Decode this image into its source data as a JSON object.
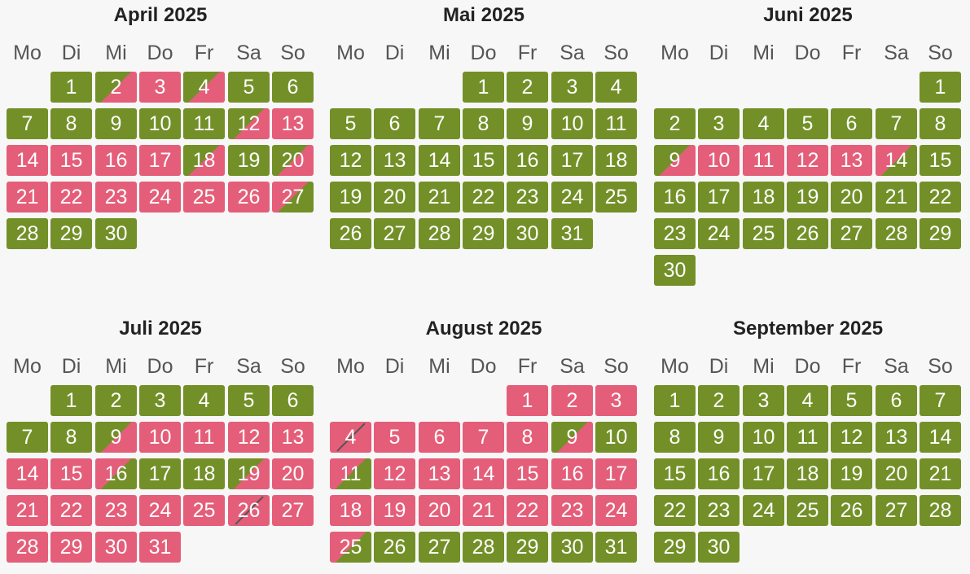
{
  "colors": {
    "free": "#739028",
    "booked": "#e45e79",
    "background": "#f7f7f7"
  },
  "weekdays": [
    "Mo",
    "Di",
    "Mi",
    "Do",
    "Fr",
    "Sa",
    "So"
  ],
  "months": [
    {
      "title": "April 2025",
      "days": [
        {
          "d": "1",
          "s": "free"
        },
        {
          "d": "2",
          "s": "pm-booked"
        },
        {
          "d": "3",
          "s": "booked"
        },
        {
          "d": "4",
          "s": "pm-booked"
        },
        {
          "d": "5",
          "s": "free"
        },
        {
          "d": "6",
          "s": "free"
        },
        {
          "d": "7",
          "s": "free"
        },
        {
          "d": "8",
          "s": "free"
        },
        {
          "d": "9",
          "s": "free"
        },
        {
          "d": "10",
          "s": "free"
        },
        {
          "d": "11",
          "s": "free"
        },
        {
          "d": "12",
          "s": "pm-booked"
        },
        {
          "d": "13",
          "s": "booked"
        },
        {
          "d": "14",
          "s": "booked"
        },
        {
          "d": "15",
          "s": "booked"
        },
        {
          "d": "16",
          "s": "booked"
        },
        {
          "d": "17",
          "s": "booked"
        },
        {
          "d": "18",
          "s": "pm-booked"
        },
        {
          "d": "19",
          "s": "free"
        },
        {
          "d": "20",
          "s": "pm-booked"
        },
        {
          "d": "21",
          "s": "booked"
        },
        {
          "d": "22",
          "s": "booked"
        },
        {
          "d": "23",
          "s": "booked"
        },
        {
          "d": "24",
          "s": "booked"
        },
        {
          "d": "25",
          "s": "booked"
        },
        {
          "d": "26",
          "s": "booked"
        },
        {
          "d": "27",
          "s": "am-booked"
        },
        {
          "d": "28",
          "s": "free"
        },
        {
          "d": "29",
          "s": "free"
        },
        {
          "d": "30",
          "s": "free"
        }
      ]
    },
    {
      "title": "Mai 2025",
      "days": [
        {
          "d": "1",
          "s": "free"
        },
        {
          "d": "2",
          "s": "free"
        },
        {
          "d": "3",
          "s": "free"
        },
        {
          "d": "4",
          "s": "free"
        },
        {
          "d": "5",
          "s": "free"
        },
        {
          "d": "6",
          "s": "free"
        },
        {
          "d": "7",
          "s": "free"
        },
        {
          "d": "8",
          "s": "free"
        },
        {
          "d": "9",
          "s": "free"
        },
        {
          "d": "10",
          "s": "free"
        },
        {
          "d": "11",
          "s": "free"
        },
        {
          "d": "12",
          "s": "free"
        },
        {
          "d": "13",
          "s": "free"
        },
        {
          "d": "14",
          "s": "free"
        },
        {
          "d": "15",
          "s": "free"
        },
        {
          "d": "16",
          "s": "free"
        },
        {
          "d": "17",
          "s": "free"
        },
        {
          "d": "18",
          "s": "free"
        },
        {
          "d": "19",
          "s": "free"
        },
        {
          "d": "20",
          "s": "free"
        },
        {
          "d": "21",
          "s": "free"
        },
        {
          "d": "22",
          "s": "free"
        },
        {
          "d": "23",
          "s": "free"
        },
        {
          "d": "24",
          "s": "free"
        },
        {
          "d": "25",
          "s": "free"
        },
        {
          "d": "26",
          "s": "free"
        },
        {
          "d": "27",
          "s": "free"
        },
        {
          "d": "28",
          "s": "free"
        },
        {
          "d": "29",
          "s": "free"
        },
        {
          "d": "30",
          "s": "free"
        },
        {
          "d": "31",
          "s": "free"
        }
      ]
    },
    {
      "title": "Juni 2025",
      "days": [
        {
          "d": "1",
          "s": "free"
        },
        {
          "d": "2",
          "s": "free"
        },
        {
          "d": "3",
          "s": "free"
        },
        {
          "d": "4",
          "s": "free"
        },
        {
          "d": "5",
          "s": "free"
        },
        {
          "d": "6",
          "s": "free"
        },
        {
          "d": "7",
          "s": "free"
        },
        {
          "d": "8",
          "s": "free"
        },
        {
          "d": "9",
          "s": "pm-booked"
        },
        {
          "d": "10",
          "s": "booked"
        },
        {
          "d": "11",
          "s": "booked"
        },
        {
          "d": "12",
          "s": "booked"
        },
        {
          "d": "13",
          "s": "booked"
        },
        {
          "d": "14",
          "s": "am-booked"
        },
        {
          "d": "15",
          "s": "free"
        },
        {
          "d": "16",
          "s": "free"
        },
        {
          "d": "17",
          "s": "free"
        },
        {
          "d": "18",
          "s": "free"
        },
        {
          "d": "19",
          "s": "free"
        },
        {
          "d": "20",
          "s": "free"
        },
        {
          "d": "21",
          "s": "free"
        },
        {
          "d": "22",
          "s": "free"
        },
        {
          "d": "23",
          "s": "free"
        },
        {
          "d": "24",
          "s": "free"
        },
        {
          "d": "25",
          "s": "free"
        },
        {
          "d": "26",
          "s": "free"
        },
        {
          "d": "27",
          "s": "free"
        },
        {
          "d": "28",
          "s": "free"
        },
        {
          "d": "29",
          "s": "free"
        },
        {
          "d": "30",
          "s": "free"
        }
      ]
    },
    {
      "title": "Juli 2025",
      "days": [
        {
          "d": "1",
          "s": "free"
        },
        {
          "d": "2",
          "s": "free"
        },
        {
          "d": "3",
          "s": "free"
        },
        {
          "d": "4",
          "s": "free"
        },
        {
          "d": "5",
          "s": "free"
        },
        {
          "d": "6",
          "s": "free"
        },
        {
          "d": "7",
          "s": "free"
        },
        {
          "d": "8",
          "s": "free"
        },
        {
          "d": "9",
          "s": "pm-booked"
        },
        {
          "d": "10",
          "s": "booked"
        },
        {
          "d": "11",
          "s": "booked"
        },
        {
          "d": "12",
          "s": "booked"
        },
        {
          "d": "13",
          "s": "booked"
        },
        {
          "d": "14",
          "s": "booked"
        },
        {
          "d": "15",
          "s": "booked"
        },
        {
          "d": "16",
          "s": "am-booked"
        },
        {
          "d": "17",
          "s": "free"
        },
        {
          "d": "18",
          "s": "free"
        },
        {
          "d": "19",
          "s": "pm-booked"
        },
        {
          "d": "20",
          "s": "booked"
        },
        {
          "d": "21",
          "s": "booked"
        },
        {
          "d": "22",
          "s": "booked"
        },
        {
          "d": "23",
          "s": "booked"
        },
        {
          "d": "24",
          "s": "booked"
        },
        {
          "d": "25",
          "s": "booked"
        },
        {
          "d": "26",
          "s": "blocked"
        },
        {
          "d": "27",
          "s": "booked"
        },
        {
          "d": "28",
          "s": "booked"
        },
        {
          "d": "29",
          "s": "booked"
        },
        {
          "d": "30",
          "s": "booked"
        },
        {
          "d": "31",
          "s": "booked"
        }
      ]
    },
    {
      "title": "August 2025",
      "days": [
        {
          "d": "1",
          "s": "booked"
        },
        {
          "d": "2",
          "s": "booked"
        },
        {
          "d": "3",
          "s": "booked"
        },
        {
          "d": "4",
          "s": "blocked"
        },
        {
          "d": "5",
          "s": "booked"
        },
        {
          "d": "6",
          "s": "booked"
        },
        {
          "d": "7",
          "s": "booked"
        },
        {
          "d": "8",
          "s": "booked"
        },
        {
          "d": "9",
          "s": "pm-booked"
        },
        {
          "d": "10",
          "s": "free"
        },
        {
          "d": "11",
          "s": "am-booked"
        },
        {
          "d": "12",
          "s": "booked"
        },
        {
          "d": "13",
          "s": "booked"
        },
        {
          "d": "14",
          "s": "booked"
        },
        {
          "d": "15",
          "s": "booked"
        },
        {
          "d": "16",
          "s": "booked"
        },
        {
          "d": "17",
          "s": "booked"
        },
        {
          "d": "18",
          "s": "booked"
        },
        {
          "d": "19",
          "s": "booked"
        },
        {
          "d": "20",
          "s": "booked"
        },
        {
          "d": "21",
          "s": "booked"
        },
        {
          "d": "22",
          "s": "booked"
        },
        {
          "d": "23",
          "s": "booked"
        },
        {
          "d": "24",
          "s": "booked"
        },
        {
          "d": "25",
          "s": "am-booked"
        },
        {
          "d": "26",
          "s": "free"
        },
        {
          "d": "27",
          "s": "free"
        },
        {
          "d": "28",
          "s": "free"
        },
        {
          "d": "29",
          "s": "free"
        },
        {
          "d": "30",
          "s": "free"
        },
        {
          "d": "31",
          "s": "free"
        }
      ]
    },
    {
      "title": "September 2025",
      "days": [
        {
          "d": "1",
          "s": "free"
        },
        {
          "d": "2",
          "s": "free"
        },
        {
          "d": "3",
          "s": "free"
        },
        {
          "d": "4",
          "s": "free"
        },
        {
          "d": "5",
          "s": "free"
        },
        {
          "d": "6",
          "s": "free"
        },
        {
          "d": "7",
          "s": "free"
        },
        {
          "d": "8",
          "s": "free"
        },
        {
          "d": "9",
          "s": "free"
        },
        {
          "d": "10",
          "s": "free"
        },
        {
          "d": "11",
          "s": "free"
        },
        {
          "d": "12",
          "s": "free"
        },
        {
          "d": "13",
          "s": "free"
        },
        {
          "d": "14",
          "s": "free"
        },
        {
          "d": "15",
          "s": "free"
        },
        {
          "d": "16",
          "s": "free"
        },
        {
          "d": "17",
          "s": "free"
        },
        {
          "d": "18",
          "s": "free"
        },
        {
          "d": "19",
          "s": "free"
        },
        {
          "d": "20",
          "s": "free"
        },
        {
          "d": "21",
          "s": "free"
        },
        {
          "d": "22",
          "s": "free"
        },
        {
          "d": "23",
          "s": "free"
        },
        {
          "d": "24",
          "s": "free"
        },
        {
          "d": "25",
          "s": "free"
        },
        {
          "d": "26",
          "s": "free"
        },
        {
          "d": "27",
          "s": "free"
        },
        {
          "d": "28",
          "s": "free"
        },
        {
          "d": "29",
          "s": "free"
        },
        {
          "d": "30",
          "s": "free"
        }
      ]
    }
  ]
}
